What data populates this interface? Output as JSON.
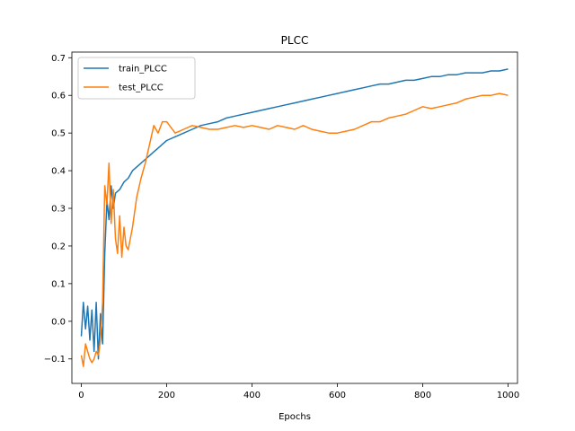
{
  "chart_data": {
    "type": "line",
    "title": "PLCC",
    "xlabel": "Epochs",
    "ylabel": "",
    "xlim": [
      -22,
      1022
    ],
    "ylim": [
      -0.165,
      0.715
    ],
    "xticks": [
      0,
      200,
      400,
      600,
      800,
      1000
    ],
    "yticks": [
      -0.1,
      0.0,
      0.1,
      0.2,
      0.3,
      0.4,
      0.5,
      0.6,
      0.7
    ],
    "grid": false,
    "legend_position": "upper-left",
    "series": [
      {
        "name": "train_PLCC",
        "color": "#1f77b4",
        "x": [
          0,
          5,
          10,
          15,
          20,
          25,
          30,
          35,
          40,
          45,
          50,
          55,
          60,
          65,
          70,
          75,
          80,
          90,
          100,
          110,
          120,
          130,
          140,
          150,
          160,
          170,
          180,
          190,
          200,
          220,
          240,
          260,
          280,
          300,
          320,
          340,
          360,
          380,
          400,
          420,
          440,
          460,
          480,
          500,
          520,
          540,
          560,
          580,
          600,
          620,
          640,
          660,
          680,
          700,
          720,
          740,
          760,
          780,
          800,
          820,
          840,
          860,
          880,
          900,
          920,
          940,
          960,
          980,
          1000
        ],
        "y": [
          -0.04,
          0.05,
          -0.02,
          0.04,
          -0.05,
          0.03,
          -0.08,
          0.05,
          -0.1,
          0.02,
          -0.06,
          0.18,
          0.32,
          0.27,
          0.36,
          0.3,
          0.34,
          0.35,
          0.37,
          0.38,
          0.4,
          0.41,
          0.42,
          0.43,
          0.44,
          0.45,
          0.46,
          0.47,
          0.48,
          0.49,
          0.5,
          0.51,
          0.52,
          0.525,
          0.53,
          0.54,
          0.545,
          0.55,
          0.555,
          0.56,
          0.565,
          0.57,
          0.575,
          0.58,
          0.585,
          0.59,
          0.595,
          0.6,
          0.605,
          0.61,
          0.615,
          0.62,
          0.625,
          0.63,
          0.63,
          0.635,
          0.64,
          0.64,
          0.645,
          0.65,
          0.65,
          0.655,
          0.655,
          0.66,
          0.66,
          0.66,
          0.665,
          0.665,
          0.67
        ]
      },
      {
        "name": "test_PLCC",
        "color": "#ff7f0e",
        "x": [
          0,
          5,
          10,
          15,
          20,
          25,
          30,
          35,
          40,
          45,
          50,
          55,
          60,
          65,
          70,
          75,
          80,
          85,
          90,
          95,
          100,
          105,
          110,
          120,
          130,
          140,
          150,
          160,
          170,
          180,
          190,
          200,
          220,
          240,
          260,
          280,
          300,
          320,
          340,
          360,
          380,
          400,
          420,
          440,
          460,
          480,
          500,
          520,
          540,
          560,
          580,
          600,
          620,
          640,
          660,
          680,
          700,
          720,
          740,
          760,
          780,
          800,
          820,
          840,
          860,
          880,
          900,
          920,
          940,
          960,
          980,
          1000
        ],
        "y": [
          -0.09,
          -0.12,
          -0.06,
          -0.08,
          -0.1,
          -0.11,
          -0.1,
          -0.08,
          -0.09,
          -0.05,
          0.05,
          0.36,
          0.31,
          0.42,
          0.26,
          0.35,
          0.22,
          0.18,
          0.28,
          0.17,
          0.25,
          0.2,
          0.19,
          0.25,
          0.33,
          0.38,
          0.42,
          0.47,
          0.52,
          0.5,
          0.53,
          0.53,
          0.5,
          0.51,
          0.52,
          0.515,
          0.51,
          0.51,
          0.515,
          0.52,
          0.515,
          0.52,
          0.515,
          0.51,
          0.52,
          0.515,
          0.51,
          0.52,
          0.51,
          0.505,
          0.5,
          0.5,
          0.505,
          0.51,
          0.52,
          0.53,
          0.53,
          0.54,
          0.545,
          0.55,
          0.56,
          0.57,
          0.565,
          0.57,
          0.575,
          0.58,
          0.59,
          0.595,
          0.6,
          0.6,
          0.605,
          0.6
        ]
      }
    ]
  }
}
